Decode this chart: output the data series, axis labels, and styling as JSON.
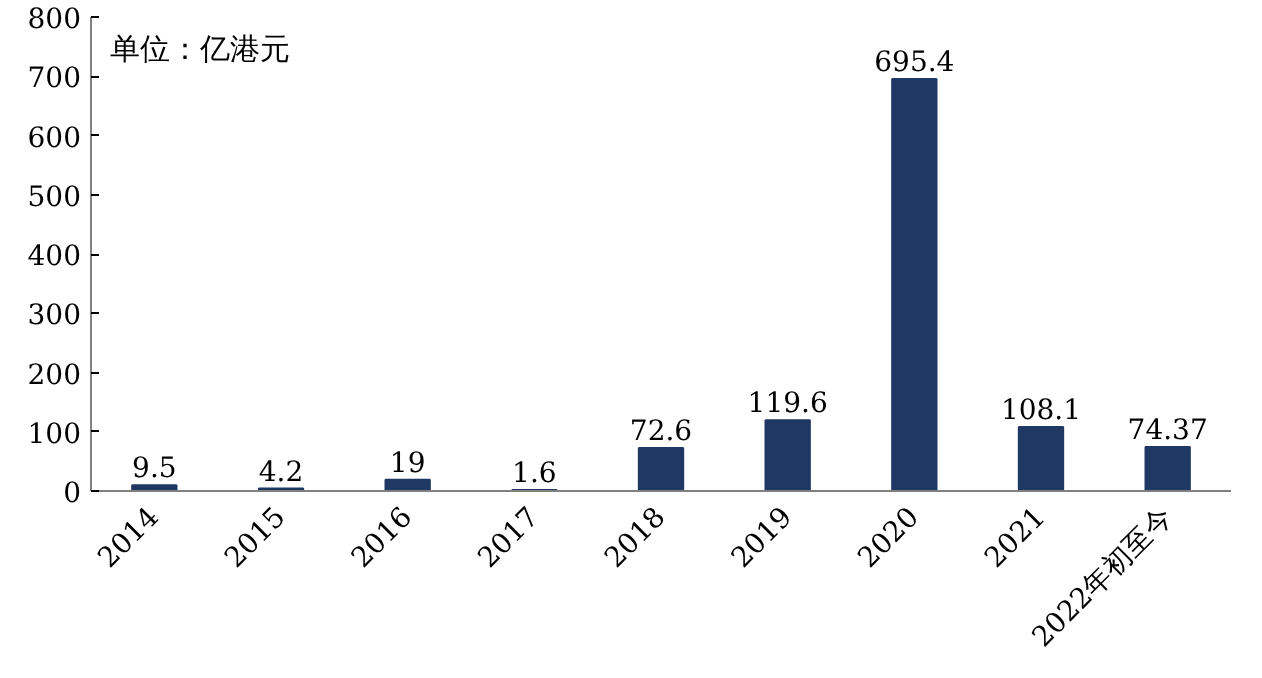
{
  "chart_data": {
    "type": "bar",
    "categories": [
      "2014",
      "2015",
      "2016",
      "2017",
      "2018",
      "2019",
      "2020",
      "2021",
      "2022年初至今"
    ],
    "values": [
      9.5,
      4.2,
      19,
      1.6,
      72.6,
      119.6,
      695.4,
      108.1,
      74.37
    ],
    "color": "#1f3864",
    "ylim": [
      0,
      800
    ],
    "yticks": [
      0,
      100,
      200,
      300,
      400,
      500,
      600,
      700,
      800
    ],
    "data_labels": true,
    "annotations": [
      "单位：亿港元"
    ]
  }
}
